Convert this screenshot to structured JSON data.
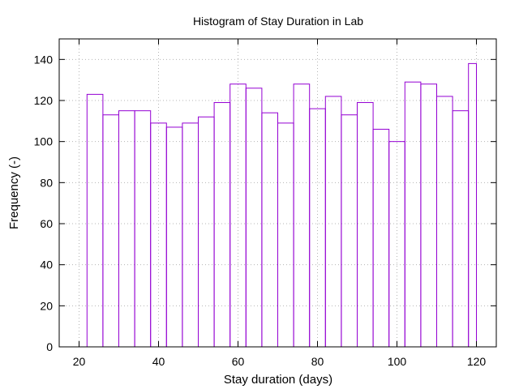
{
  "chart_data": {
    "type": "bar",
    "title": "Histogram of Stay Duration in Lab",
    "xlabel": "Stay duration (days)",
    "ylabel": "Frequency (-)",
    "xlim": [
      15,
      125
    ],
    "ylim": [
      0,
      150
    ],
    "xticks": [
      20,
      40,
      60,
      80,
      100,
      120
    ],
    "yticks": [
      0,
      20,
      40,
      60,
      80,
      100,
      120,
      140
    ],
    "grid": true,
    "bar_color": "#9400d3",
    "bins": [
      {
        "start": 22,
        "end": 26,
        "value": 123
      },
      {
        "start": 26,
        "end": 30,
        "value": 113
      },
      {
        "start": 30,
        "end": 34,
        "value": 115
      },
      {
        "start": 34,
        "end": 38,
        "value": 115
      },
      {
        "start": 38,
        "end": 42,
        "value": 109
      },
      {
        "start": 42,
        "end": 46,
        "value": 107
      },
      {
        "start": 46,
        "end": 50,
        "value": 109
      },
      {
        "start": 50,
        "end": 54,
        "value": 112
      },
      {
        "start": 54,
        "end": 58,
        "value": 119
      },
      {
        "start": 58,
        "end": 62,
        "value": 128
      },
      {
        "start": 62,
        "end": 66,
        "value": 126
      },
      {
        "start": 66,
        "end": 70,
        "value": 114
      },
      {
        "start": 70,
        "end": 74,
        "value": 109
      },
      {
        "start": 74,
        "end": 78,
        "value": 128
      },
      {
        "start": 78,
        "end": 82,
        "value": 116
      },
      {
        "start": 82,
        "end": 86,
        "value": 122
      },
      {
        "start": 86,
        "end": 90,
        "value": 113
      },
      {
        "start": 90,
        "end": 94,
        "value": 119
      },
      {
        "start": 94,
        "end": 98,
        "value": 106
      },
      {
        "start": 98,
        "end": 102,
        "value": 100
      },
      {
        "start": 102,
        "end": 106,
        "value": 129
      },
      {
        "start": 106,
        "end": 110,
        "value": 128
      },
      {
        "start": 110,
        "end": 114,
        "value": 122
      },
      {
        "start": 114,
        "end": 118,
        "value": 115
      },
      {
        "start": 118,
        "end": 120,
        "value": 138
      }
    ]
  }
}
